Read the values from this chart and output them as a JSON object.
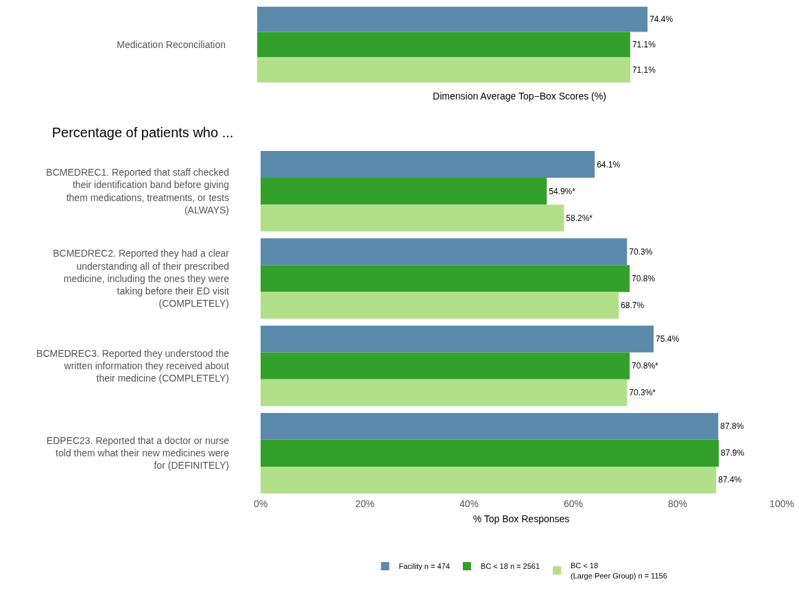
{
  "chart_data": [
    {
      "type": "bar",
      "orientation": "horizontal",
      "xlabel": "Dimension Average Top−Box Scores (%)",
      "categories": [
        "Medication Reconciliation"
      ],
      "xlim": [
        0,
        100
      ],
      "tick_labels": false,
      "grid": false,
      "legend": false,
      "series": [
        {
          "color": "#5b8aab",
          "values": [
            74.4
          ],
          "value_labels": [
            "74.4%"
          ]
        },
        {
          "color": "#33a02c",
          "values": [
            71.1
          ],
          "value_labels": [
            "71.1%"
          ]
        },
        {
          "color": "#b2df8a",
          "values": [
            71.1
          ],
          "value_labels": [
            "71.1%"
          ]
        }
      ]
    },
    {
      "type": "bar",
      "orientation": "horizontal",
      "title": "Percentage of patients who ...",
      "xlabel": "% Top Box Responses",
      "categories": [
        "BCMEDREC1. Reported that staff checked their identification band before giving them medications, treatments, or tests (ALWAYS)",
        "BCMEDREC2. Reported they had a clear understanding all of their prescribed medicine, including the ones they were taking before their ED visit (COMPLETELY)",
        "BCMEDREC3. Reported they understood the written information they received about their medicine (COMPLETELY)",
        "EDPEC23. Reported that a doctor or nurse told them what their new medicines were for (DEFINITELY)"
      ],
      "xlim": [
        0,
        100
      ],
      "xticks": [
        {
          "value": 0,
          "label": "0%"
        },
        {
          "value": 20,
          "label": "20%"
        },
        {
          "value": 40,
          "label": "40%"
        },
        {
          "value": 60,
          "label": "60%"
        },
        {
          "value": 80,
          "label": "80%"
        },
        {
          "value": 100,
          "label": "100%"
        }
      ],
      "grid": false,
      "legend": "bottom",
      "series": [
        {
          "name": "Facility n = 474",
          "color": "#5b8aab",
          "values": [
            64.1,
            70.3,
            75.4,
            87.8
          ],
          "value_labels": [
            "64.1%",
            "70.3%",
            "75.4%",
            "87.8%"
          ]
        },
        {
          "name": "BC < 18 n = 2561",
          "color": "#33a02c",
          "values": [
            54.9,
            70.8,
            70.8,
            87.9
          ],
          "value_labels": [
            "54.9%*",
            "70.8%",
            "70.8%*",
            "87.9%"
          ]
        },
        {
          "name": "BC < 18\n(Large Peer Group) n = 1156",
          "color": "#b2df8a",
          "values": [
            58.2,
            68.7,
            70.3,
            87.4
          ],
          "value_labels": [
            "58.2%*",
            "68.7%",
            "70.3%*",
            "87.4%"
          ]
        }
      ]
    }
  ]
}
